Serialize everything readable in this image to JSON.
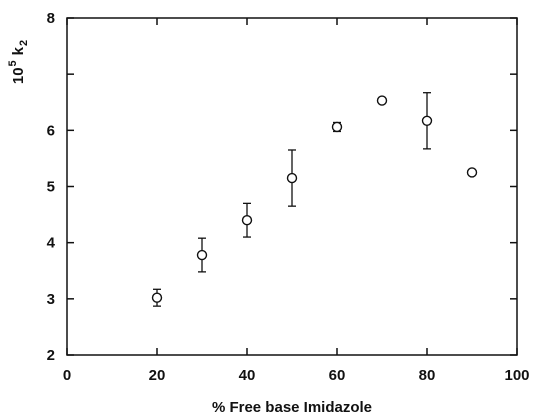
{
  "chart_data": {
    "type": "scatter",
    "xlabel": "% Free base Imidazole",
    "ylabel": {
      "base": "10",
      "exponent": "5",
      "symbol": "k",
      "subscript": "2"
    },
    "xlim": [
      0,
      100
    ],
    "ylim": [
      2,
      8
    ],
    "x_ticks": [
      0,
      20,
      40,
      60,
      80,
      100
    ],
    "x_tick_labels": [
      "0",
      "20",
      "40",
      "60",
      "80",
      "100"
    ],
    "y_ticks": [
      2,
      3,
      4,
      5,
      6,
      7,
      8
    ],
    "y_tick_labels": [
      "2",
      "3",
      "4",
      "5",
      "6",
      "",
      "8"
    ],
    "grid": false,
    "points": [
      {
        "x": 20,
        "y": 3.02,
        "err": 0.15
      },
      {
        "x": 30,
        "y": 3.78,
        "err": 0.3
      },
      {
        "x": 40,
        "y": 4.4,
        "err": 0.3
      },
      {
        "x": 50,
        "y": 5.15,
        "err": 0.5
      },
      {
        "x": 60,
        "y": 6.06,
        "err": 0.08
      },
      {
        "x": 70,
        "y": 6.53,
        "err": 0.04
      },
      {
        "x": 80,
        "y": 6.17,
        "err": 0.5
      },
      {
        "x": 90,
        "y": 5.25,
        "err": 0.04
      }
    ]
  }
}
